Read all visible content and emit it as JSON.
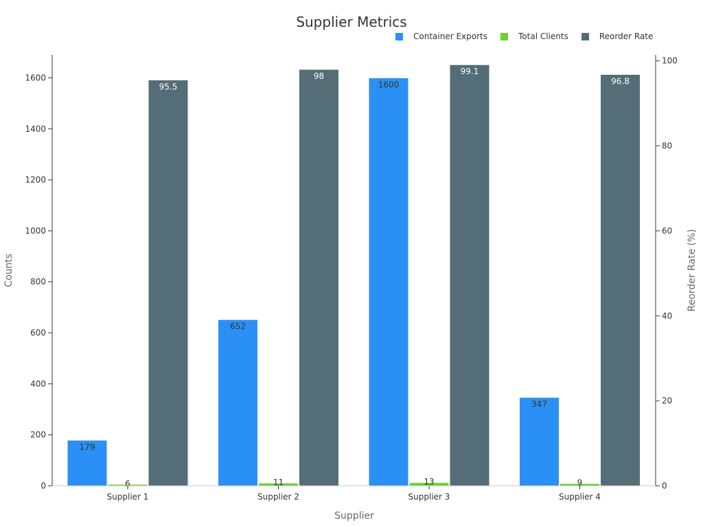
{
  "chart_data": {
    "type": "bar",
    "title": "Supplier Metrics",
    "xlabel": "Supplier",
    "ylabel": "Counts",
    "y2label": "Reorder Rate (%)",
    "categories": [
      "Supplier 1",
      "Supplier 2",
      "Supplier 3",
      "Supplier 4"
    ],
    "series": [
      {
        "name": "Container Exports",
        "axis": "left",
        "values": [
          179,
          652,
          1600,
          347
        ],
        "color": "#2b90f5",
        "labels": [
          "179",
          "652",
          "1600",
          "347"
        ],
        "label_color": "#333333"
      },
      {
        "name": "Total Clients",
        "axis": "left",
        "values": [
          6,
          11,
          13,
          9
        ],
        "color": "#6fd030",
        "labels": [
          "",
          "",
          "",
          ""
        ],
        "label_color": "#333333"
      },
      {
        "name": "Reorder Rate",
        "axis": "right",
        "values": [
          95.5,
          98,
          99.1,
          96.8
        ],
        "color": "#546d76",
        "labels": [
          "95.5",
          "98",
          "99.1",
          "96.8"
        ],
        "label_color": "#ffffff"
      }
    ],
    "ylim": [
      0,
      1690
    ],
    "y2lim": [
      0,
      101.4
    ],
    "yticks": [
      0,
      200,
      400,
      600,
      800,
      1000,
      1200,
      1400,
      1600
    ],
    "y2ticks": [
      0,
      20,
      40,
      60,
      80,
      100
    ],
    "grid": false,
    "legend_position": "top-right"
  }
}
